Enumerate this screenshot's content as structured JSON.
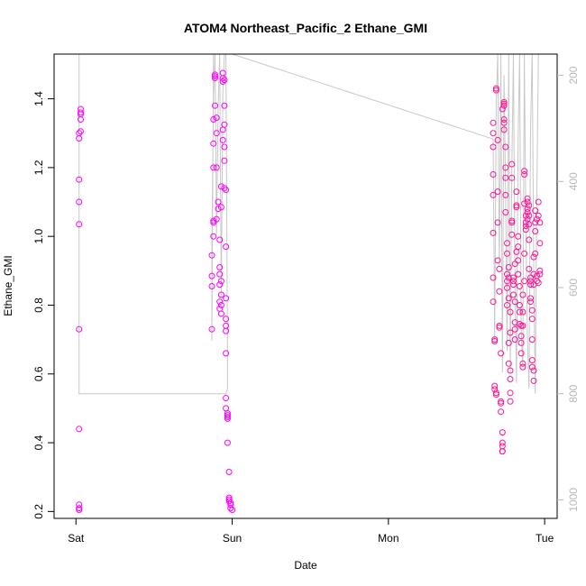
{
  "chart_data": {
    "type": "scatter",
    "title": "ATOM4 Northeast_Pacific_2 Ethane_GMI",
    "xlabel": "Date",
    "ylabel": "Ethane_GMI",
    "x_ticks": [
      "Sat",
      "Sun",
      "Mon",
      "Tue"
    ],
    "x_range_days": [
      -0.14,
      3.08
    ],
    "ylim": [
      0.18,
      1.53
    ],
    "y_ticks": [
      0.2,
      0.4,
      0.6,
      0.8,
      1.0,
      1.2,
      1.4
    ],
    "y_tick_labels": [
      "0.2",
      "0.4",
      "0.6",
      "0.8",
      "1.0",
      "1.2",
      "1.4"
    ],
    "right_axis": {
      "ylim": [
        1035,
        160
      ],
      "ticks": [
        200,
        400,
        600,
        800,
        1000
      ],
      "tick_labels": [
        "200",
        "400",
        "600",
        "800",
        "1000"
      ],
      "color": "#b8b8b8"
    },
    "grid": false,
    "legend": "none",
    "colors": {
      "points": "#ff1493",
      "points_alt": "#ff00ff",
      "pressure_line": "#c8c8c8"
    },
    "series": [
      {
        "points": [
          [
            0.02,
            0.205
          ],
          [
            0.02,
            0.21
          ],
          [
            0.02,
            0.22
          ],
          [
            0.02,
            0.44
          ],
          [
            0.02,
            0.73
          ],
          [
            0.02,
            1.035
          ],
          [
            0.02,
            1.1
          ],
          [
            0.02,
            1.165
          ],
          [
            0.02,
            1.285
          ],
          [
            0.02,
            1.3
          ],
          [
            0.03,
            1.305
          ],
          [
            0.03,
            1.34
          ],
          [
            0.03,
            1.355
          ],
          [
            0.03,
            1.36
          ],
          [
            0.03,
            1.37
          ],
          [
            0.87,
            0.73
          ],
          [
            0.87,
            0.855
          ],
          [
            0.87,
            0.885
          ],
          [
            0.87,
            0.945
          ],
          [
            0.88,
            1.0
          ],
          [
            0.88,
            1.04
          ],
          [
            0.88,
            1.045
          ],
          [
            0.88,
            1.2
          ],
          [
            0.88,
            1.27
          ],
          [
            0.88,
            1.34
          ],
          [
            0.89,
            1.38
          ],
          [
            0.89,
            1.46
          ],
          [
            0.89,
            1.47
          ],
          [
            0.89,
            1.465
          ],
          [
            0.9,
            1.3
          ],
          [
            0.9,
            1.345
          ],
          [
            0.9,
            1.2
          ],
          [
            0.9,
            1.05
          ],
          [
            0.91,
            1.1
          ],
          [
            0.91,
            1.08
          ],
          [
            0.92,
            0.99
          ],
          [
            0.92,
            0.91
          ],
          [
            0.92,
            0.89
          ],
          [
            0.92,
            0.86
          ],
          [
            0.92,
            0.81
          ],
          [
            0.92,
            0.79
          ],
          [
            0.93,
            0.775
          ],
          [
            0.93,
            0.8
          ],
          [
            0.93,
            0.83
          ],
          [
            0.93,
            0.87
          ],
          [
            0.93,
            1.085
          ],
          [
            0.93,
            1.145
          ],
          [
            0.94,
            1.28
          ],
          [
            0.94,
            1.31
          ],
          [
            0.94,
            1.46
          ],
          [
            0.94,
            1.475
          ],
          [
            0.94,
            1.45
          ],
          [
            0.95,
            1.22
          ],
          [
            0.95,
            1.26
          ],
          [
            0.95,
            1.325
          ],
          [
            0.95,
            1.38
          ],
          [
            0.95,
            1.455
          ],
          [
            0.95,
            1.14
          ],
          [
            0.96,
            1.135
          ],
          [
            0.96,
            0.97
          ],
          [
            0.96,
            0.82
          ],
          [
            0.96,
            0.76
          ],
          [
            0.96,
            0.725
          ],
          [
            0.96,
            0.74
          ],
          [
            0.96,
            0.66
          ],
          [
            0.96,
            0.53
          ],
          [
            0.96,
            0.5
          ],
          [
            0.97,
            0.475
          ],
          [
            0.97,
            0.48
          ],
          [
            0.97,
            0.485
          ],
          [
            0.97,
            0.47
          ],
          [
            0.97,
            0.4
          ],
          [
            0.98,
            0.315
          ],
          [
            0.98,
            0.24
          ],
          [
            0.98,
            0.235
          ],
          [
            0.98,
            0.23
          ],
          [
            0.99,
            0.225
          ],
          [
            0.99,
            0.22
          ],
          [
            0.99,
            0.21
          ],
          [
            1.0,
            0.205
          ],
          [
            2.67,
            1.33
          ],
          [
            2.67,
            1.3
          ],
          [
            2.67,
            1.26
          ],
          [
            2.67,
            1.18
          ],
          [
            2.67,
            1.12
          ],
          [
            2.67,
            1.01
          ],
          [
            2.67,
            0.88
          ],
          [
            2.67,
            0.81
          ],
          [
            2.68,
            0.7
          ],
          [
            2.68,
            0.695
          ],
          [
            2.68,
            0.565
          ],
          [
            2.68,
            0.555
          ],
          [
            2.69,
            0.545
          ],
          [
            2.69,
            0.54
          ],
          [
            2.69,
            1.43
          ],
          [
            2.69,
            1.425
          ],
          [
            2.7,
            1.28
          ],
          [
            2.7,
            1.13
          ],
          [
            2.7,
            1.04
          ],
          [
            2.7,
            0.93
          ],
          [
            2.71,
            0.905
          ],
          [
            2.71,
            0.84
          ],
          [
            2.71,
            0.74
          ],
          [
            2.71,
            0.735
          ],
          [
            2.72,
            0.66
          ],
          [
            2.72,
            0.52
          ],
          [
            2.72,
            0.515
          ],
          [
            2.72,
            0.49
          ],
          [
            2.73,
            0.39
          ],
          [
            2.73,
            0.375
          ],
          [
            2.73,
            0.375
          ],
          [
            2.73,
            0.4
          ],
          [
            2.73,
            0.43
          ],
          [
            2.73,
            1.37
          ],
          [
            2.74,
            1.38
          ],
          [
            2.74,
            1.385
          ],
          [
            2.74,
            1.39
          ],
          [
            2.74,
            1.34
          ],
          [
            2.74,
            1.33
          ],
          [
            2.74,
            1.31
          ],
          [
            2.75,
            1.26
          ],
          [
            2.75,
            1.2
          ],
          [
            2.75,
            1.17
          ],
          [
            2.75,
            1.12
          ],
          [
            2.75,
            1.07
          ],
          [
            2.76,
            0.98
          ],
          [
            2.76,
            0.95
          ],
          [
            2.76,
            0.89
          ],
          [
            2.76,
            0.87
          ],
          [
            2.76,
            0.85
          ],
          [
            2.76,
            0.8
          ],
          [
            2.77,
            0.82
          ],
          [
            2.77,
            0.88
          ],
          [
            2.77,
            0.91
          ],
          [
            2.77,
            0.69
          ],
          [
            2.77,
            0.63
          ],
          [
            2.78,
            0.61
          ],
          [
            2.78,
            0.585
          ],
          [
            2.78,
            0.545
          ],
          [
            2.78,
            0.52
          ],
          [
            2.78,
            0.72
          ],
          [
            2.78,
            0.78
          ],
          [
            2.79,
            1.04
          ],
          [
            2.79,
            1.045
          ],
          [
            2.79,
            1.005
          ],
          [
            2.79,
            1.17
          ],
          [
            2.79,
            1.21
          ],
          [
            2.8,
            0.88
          ],
          [
            2.8,
            0.87
          ],
          [
            2.8,
            0.86
          ],
          [
            2.8,
            0.83
          ],
          [
            2.81,
            0.75
          ],
          [
            2.81,
            0.73
          ],
          [
            2.81,
            0.7
          ],
          [
            2.81,
            0.81
          ],
          [
            2.81,
            0.92
          ],
          [
            2.82,
            0.955
          ],
          [
            2.82,
            1.09
          ],
          [
            2.82,
            1.13
          ],
          [
            2.82,
            1.085
          ],
          [
            2.83,
            1.0
          ],
          [
            2.83,
            0.97
          ],
          [
            2.83,
            0.93
          ],
          [
            2.83,
            0.89
          ],
          [
            2.84,
            0.855
          ],
          [
            2.84,
            0.8
          ],
          [
            2.84,
            0.78
          ],
          [
            2.84,
            0.745
          ],
          [
            2.85,
            0.74
          ],
          [
            2.85,
            0.71
          ],
          [
            2.85,
            0.69
          ],
          [
            2.85,
            0.66
          ],
          [
            2.86,
            0.63
          ],
          [
            2.86,
            0.62
          ],
          [
            2.86,
            0.74
          ],
          [
            2.86,
            0.78
          ],
          [
            2.86,
            0.83
          ],
          [
            2.87,
            0.87
          ],
          [
            2.87,
            0.95
          ],
          [
            2.87,
            1.19
          ],
          [
            2.87,
            1.18
          ],
          [
            2.87,
            1.095
          ],
          [
            2.88,
            1.06
          ],
          [
            2.88,
            1.04
          ],
          [
            2.88,
            1.03
          ],
          [
            2.88,
            1.02
          ],
          [
            2.89,
            1.05
          ],
          [
            2.89,
            1.07
          ],
          [
            2.89,
            1.08
          ],
          [
            2.89,
            1.1
          ],
          [
            2.89,
            1.11
          ],
          [
            2.9,
            1.09
          ],
          [
            2.9,
            1.06
          ],
          [
            2.9,
            1.035
          ],
          [
            2.9,
            0.99
          ],
          [
            2.9,
            0.905
          ],
          [
            2.91,
            0.88
          ],
          [
            2.91,
            0.87
          ],
          [
            2.91,
            0.86
          ],
          [
            2.91,
            0.82
          ],
          [
            2.91,
            0.81
          ],
          [
            2.92,
            0.785
          ],
          [
            2.92,
            0.76
          ],
          [
            2.92,
            0.7
          ],
          [
            2.92,
            0.64
          ],
          [
            2.92,
            0.62
          ],
          [
            2.93,
            0.61
          ],
          [
            2.93,
            0.58
          ],
          [
            2.93,
            0.86
          ],
          [
            2.93,
            0.89
          ],
          [
            2.93,
            0.94
          ],
          [
            2.94,
            0.95
          ],
          [
            2.94,
            1.015
          ],
          [
            2.94,
            1.04
          ],
          [
            2.94,
            1.075
          ],
          [
            2.95,
            1.05
          ],
          [
            2.95,
            0.87
          ],
          [
            2.95,
            0.885
          ],
          [
            2.96,
            0.865
          ],
          [
            2.96,
            1.1
          ],
          [
            2.96,
            1.06
          ],
          [
            2.97,
            1.04
          ],
          [
            2.97,
            0.98
          ],
          [
            2.97,
            0.9
          ],
          [
            2.97,
            0.89
          ]
        ]
      }
    ],
    "pressure_line": [
      [
        0.01,
        160
      ],
      [
        0.02,
        160
      ],
      [
        0.02,
        800
      ],
      [
        0.96,
        800
      ],
      [
        0.97,
        790
      ],
      [
        0.97,
        740
      ],
      [
        0.96,
        160
      ],
      [
        0.88,
        160
      ],
      [
        0.87,
        700
      ],
      [
        0.87,
        520
      ],
      [
        0.88,
        240
      ],
      [
        0.89,
        160
      ],
      [
        0.9,
        500
      ],
      [
        0.91,
        260
      ],
      [
        0.92,
        160
      ],
      [
        0.93,
        620
      ],
      [
        0.94,
        230
      ],
      [
        0.95,
        160
      ],
      [
        0.96,
        160
      ],
      [
        1.0,
        160
      ],
      [
        2.67,
        320
      ],
      [
        2.68,
        700
      ],
      [
        2.69,
        250
      ],
      [
        2.7,
        160
      ],
      [
        2.71,
        560
      ],
      [
        2.72,
        160
      ],
      [
        2.73,
        760
      ],
      [
        2.74,
        200
      ],
      [
        2.75,
        420
      ],
      [
        2.76,
        720
      ],
      [
        2.77,
        160
      ],
      [
        2.78,
        760
      ],
      [
        2.79,
        380
      ],
      [
        2.8,
        160
      ],
      [
        2.81,
        600
      ],
      [
        2.82,
        780
      ],
      [
        2.83,
        320
      ],
      [
        2.84,
        160
      ],
      [
        2.85,
        680
      ],
      [
        2.86,
        750
      ],
      [
        2.87,
        160
      ],
      [
        2.88,
        480
      ],
      [
        2.89,
        700
      ],
      [
        2.9,
        790
      ],
      [
        2.91,
        300
      ],
      [
        2.92,
        160
      ],
      [
        2.93,
        560
      ],
      [
        2.94,
        800
      ],
      [
        2.95,
        420
      ],
      [
        2.96,
        160
      ],
      [
        2.97,
        160
      ]
    ]
  }
}
